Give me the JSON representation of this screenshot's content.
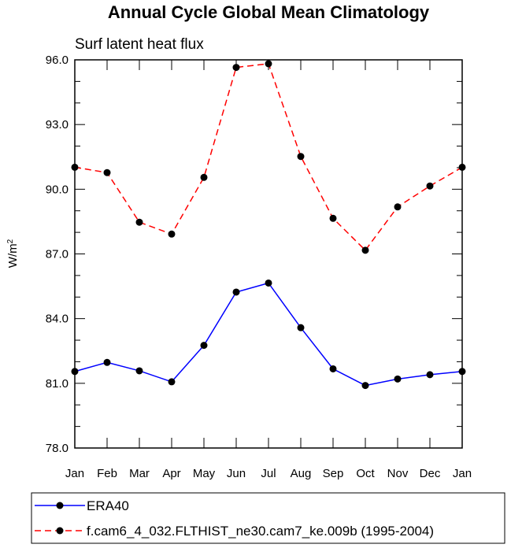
{
  "chart_data": {
    "type": "line",
    "title": "Annual Cycle Global Mean Climatology",
    "subtitle": "Surf latent heat flux",
    "ylabel": "W/m",
    "ylabel_sup": "2",
    "categories": [
      "Jan",
      "Feb",
      "Mar",
      "Apr",
      "May",
      "Jun",
      "Jul",
      "Aug",
      "Sep",
      "Oct",
      "Nov",
      "Dec",
      "Jan"
    ],
    "ylim": [
      78.0,
      96.0
    ],
    "yticks": [
      "78.0",
      "81.0",
      "84.0",
      "87.0",
      "90.0",
      "93.0",
      "96.0"
    ],
    "series": [
      {
        "name": "ERA40",
        "color": "#0000ff",
        "dash": "solid",
        "values": [
          81.55,
          81.97,
          81.58,
          81.07,
          82.76,
          85.23,
          85.65,
          83.58,
          81.67,
          80.9,
          81.2,
          81.4,
          81.55
        ]
      },
      {
        "name": "f.cam6_4_032.FLTHIST_ne30.cam7_ke.009b (1995-2004)",
        "color": "#ff0000",
        "dash": "dashed",
        "values": [
          91.02,
          90.77,
          88.47,
          87.92,
          90.55,
          95.65,
          95.82,
          91.52,
          88.65,
          87.17,
          89.18,
          90.15,
          91.02
        ]
      }
    ]
  }
}
